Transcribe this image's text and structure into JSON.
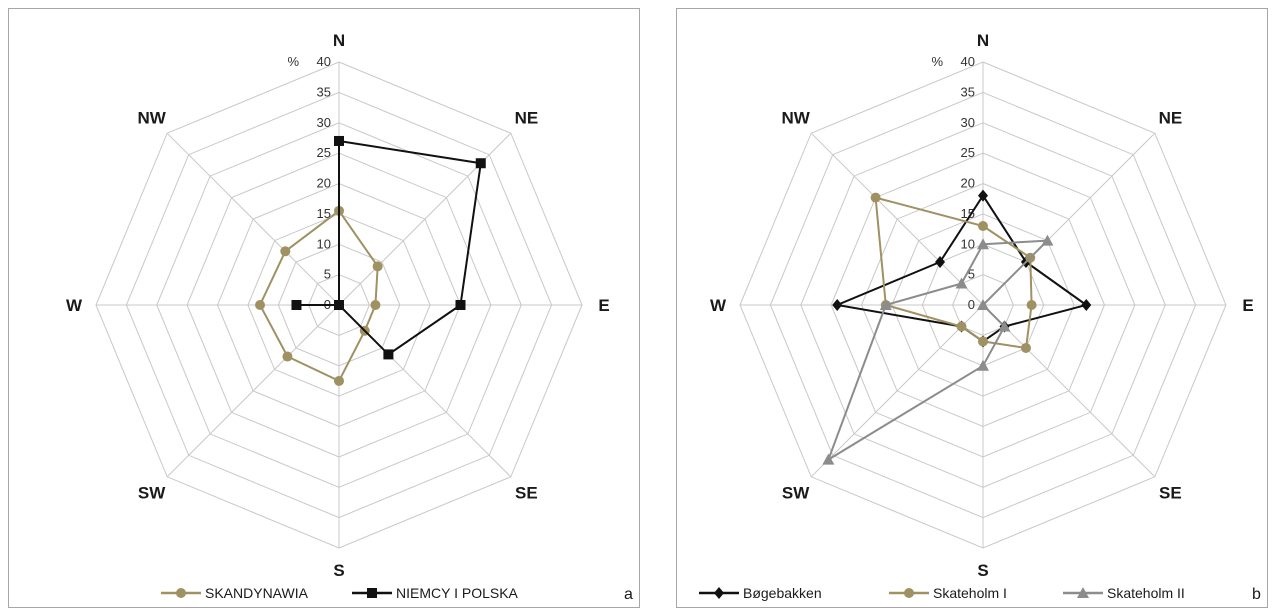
{
  "chart_data": [
    {
      "type": "radar",
      "panel_label": "a",
      "unit_label": "%",
      "axes": [
        "N",
        "NE",
        "E",
        "SE",
        "S",
        "SW",
        "W",
        "NW"
      ],
      "rlim": [
        0,
        40
      ],
      "ticks": [
        "0",
        "5",
        "10",
        "15",
        "20",
        "25",
        "30",
        "35",
        "40"
      ],
      "grid": true,
      "legend_position": "bottom",
      "series": [
        {
          "name": "SKANDYNAWIA",
          "values": [
            15.5,
            9,
            6,
            6,
            12.5,
            12,
            13,
            12.5
          ],
          "color": "#a09162",
          "marker": "circle"
        },
        {
          "name": "NIEMCY I POLSKA",
          "values": [
            27,
            33,
            20,
            11.5,
            0,
            0,
            7,
            0
          ],
          "color": "#111111",
          "marker": "square"
        }
      ]
    },
    {
      "type": "radar",
      "panel_label": "b",
      "unit_label": "%",
      "axes": [
        "N",
        "NE",
        "E",
        "SE",
        "S",
        "SW",
        "W",
        "NW"
      ],
      "rlim": [
        0,
        40
      ],
      "ticks": [
        "0",
        "5",
        "10",
        "15",
        "20",
        "25",
        "30",
        "35",
        "40"
      ],
      "grid": true,
      "legend_position": "bottom",
      "series": [
        {
          "name": "Bøgebakken",
          "values": [
            18,
            10,
            17,
            5,
            6,
            5,
            24,
            10
          ],
          "color": "#111111",
          "marker": "diamond"
        },
        {
          "name": "Skateholm I",
          "values": [
            13,
            11,
            8,
            10,
            6,
            5,
            16,
            25
          ],
          "color": "#a09162",
          "marker": "circle"
        },
        {
          "name": "Skateholm II",
          "values": [
            10,
            15,
            0,
            5,
            10,
            36,
            16,
            5
          ],
          "color": "#8c8c8c",
          "marker": "triangle"
        }
      ]
    }
  ]
}
